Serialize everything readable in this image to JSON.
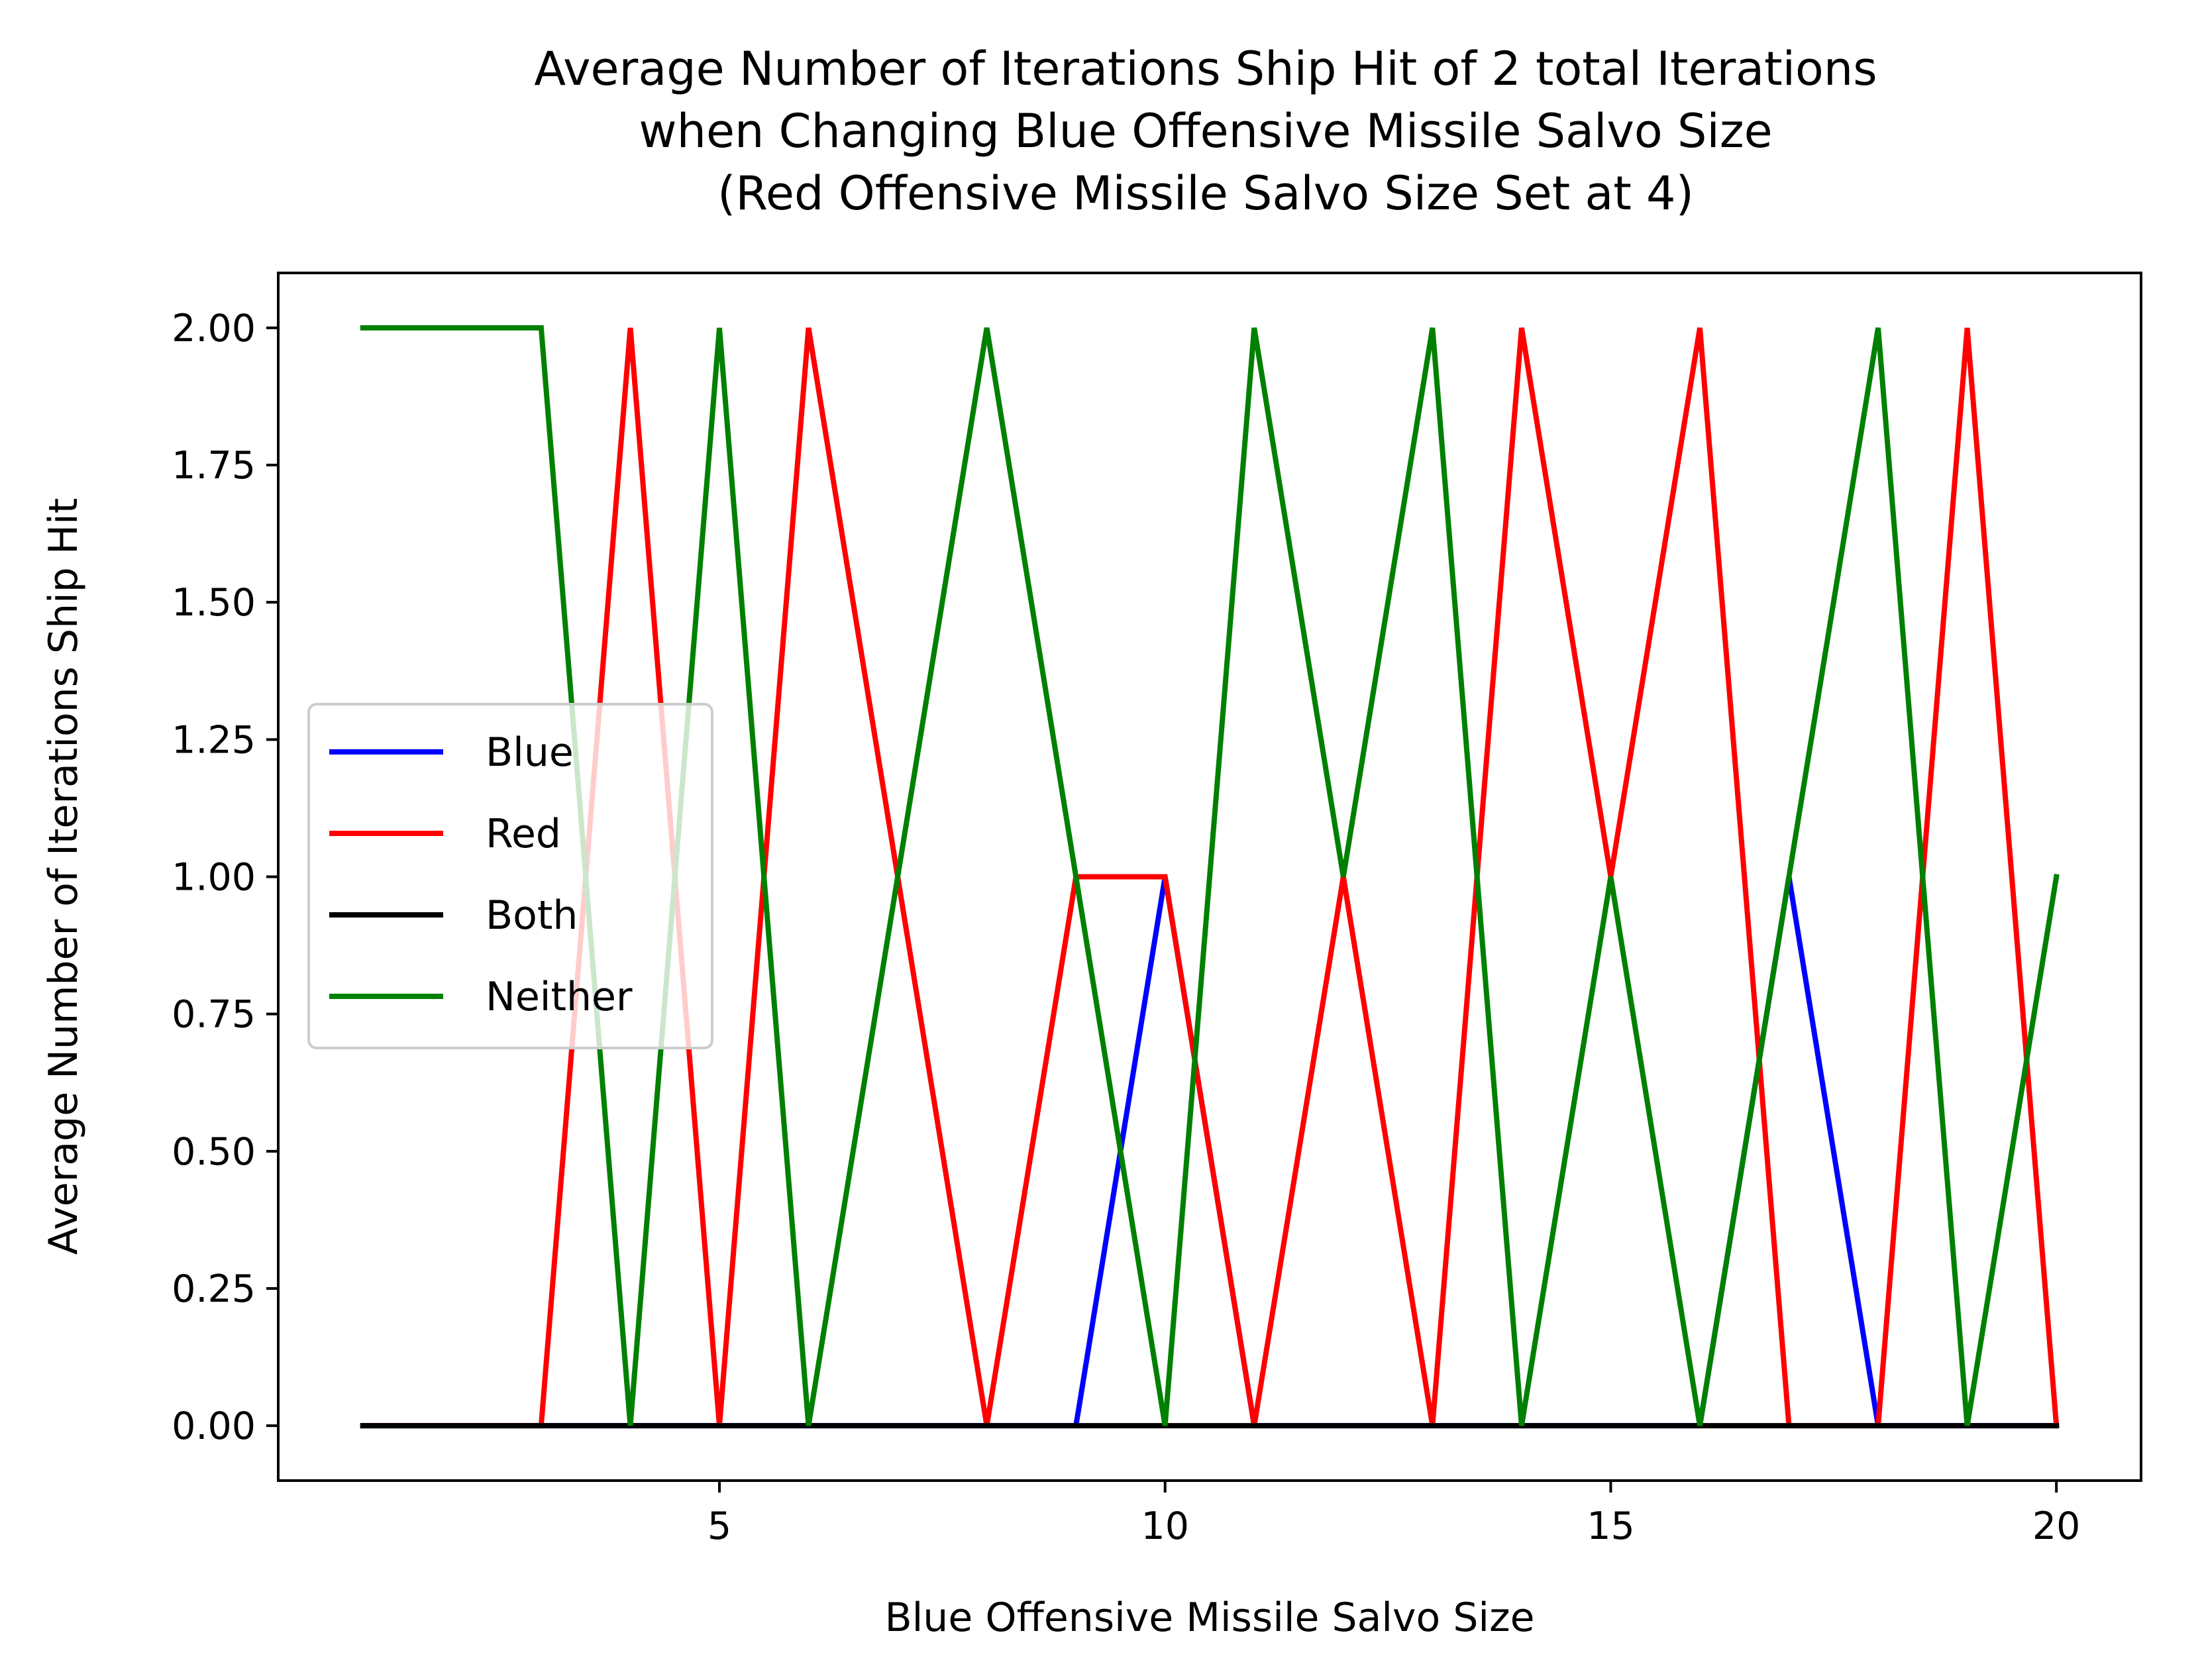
{
  "chart_data": {
    "type": "line",
    "title": [
      "Average Number of Iterations Ship Hit of 2 total Iterations",
      "when Changing Blue Offensive Missile Salvo Size",
      "(Red Offensive Missile Salvo Size Set at 4)"
    ],
    "xlabel": "Blue Offensive Missile Salvo Size",
    "ylabel": "Average Number of Iterations Ship Hit",
    "xlim": [
      0.05,
      20.95
    ],
    "ylim": [
      -0.1,
      2.1
    ],
    "x_ticks": [
      5,
      10,
      15,
      20
    ],
    "x_tick_labels": [
      "5",
      "10",
      "15",
      "20"
    ],
    "y_ticks": [
      0,
      0.25,
      0.5,
      0.75,
      1.0,
      1.25,
      1.5,
      1.75,
      2.0
    ],
    "y_tick_labels": [
      "0.00",
      "0.25",
      "0.50",
      "0.75",
      "1.00",
      "1.25",
      "1.50",
      "1.75",
      "2.00"
    ],
    "grid": false,
    "legend_position": "center-left",
    "x": [
      1,
      2,
      3,
      4,
      5,
      6,
      7,
      8,
      9,
      10,
      11,
      12,
      13,
      14,
      15,
      16,
      17,
      18,
      19,
      20
    ],
    "series": [
      {
        "name": "Blue",
        "color": "#0000ff",
        "values": [
          0,
          0,
          0,
          0,
          0,
          0,
          0,
          0,
          0,
          1,
          0,
          0,
          0,
          0,
          0,
          0,
          1,
          0,
          0,
          0
        ]
      },
      {
        "name": "Red",
        "color": "#ff0000",
        "values": [
          0,
          0,
          0,
          2,
          0,
          2,
          1,
          0,
          1,
          1,
          0,
          1,
          0,
          2,
          1,
          2,
          0,
          0,
          2,
          0
        ]
      },
      {
        "name": "Both",
        "color": "#000000",
        "values": [
          0,
          0,
          0,
          0,
          0,
          0,
          0,
          0,
          0,
          0,
          0,
          0,
          0,
          0,
          0,
          0,
          0,
          0,
          0,
          0
        ]
      },
      {
        "name": "Neither",
        "color": "#008000",
        "values": [
          2,
          2,
          2,
          0,
          2,
          0,
          1,
          2,
          1,
          0,
          2,
          1,
          2,
          0,
          1,
          0,
          1,
          2,
          0,
          1
        ]
      }
    ]
  }
}
